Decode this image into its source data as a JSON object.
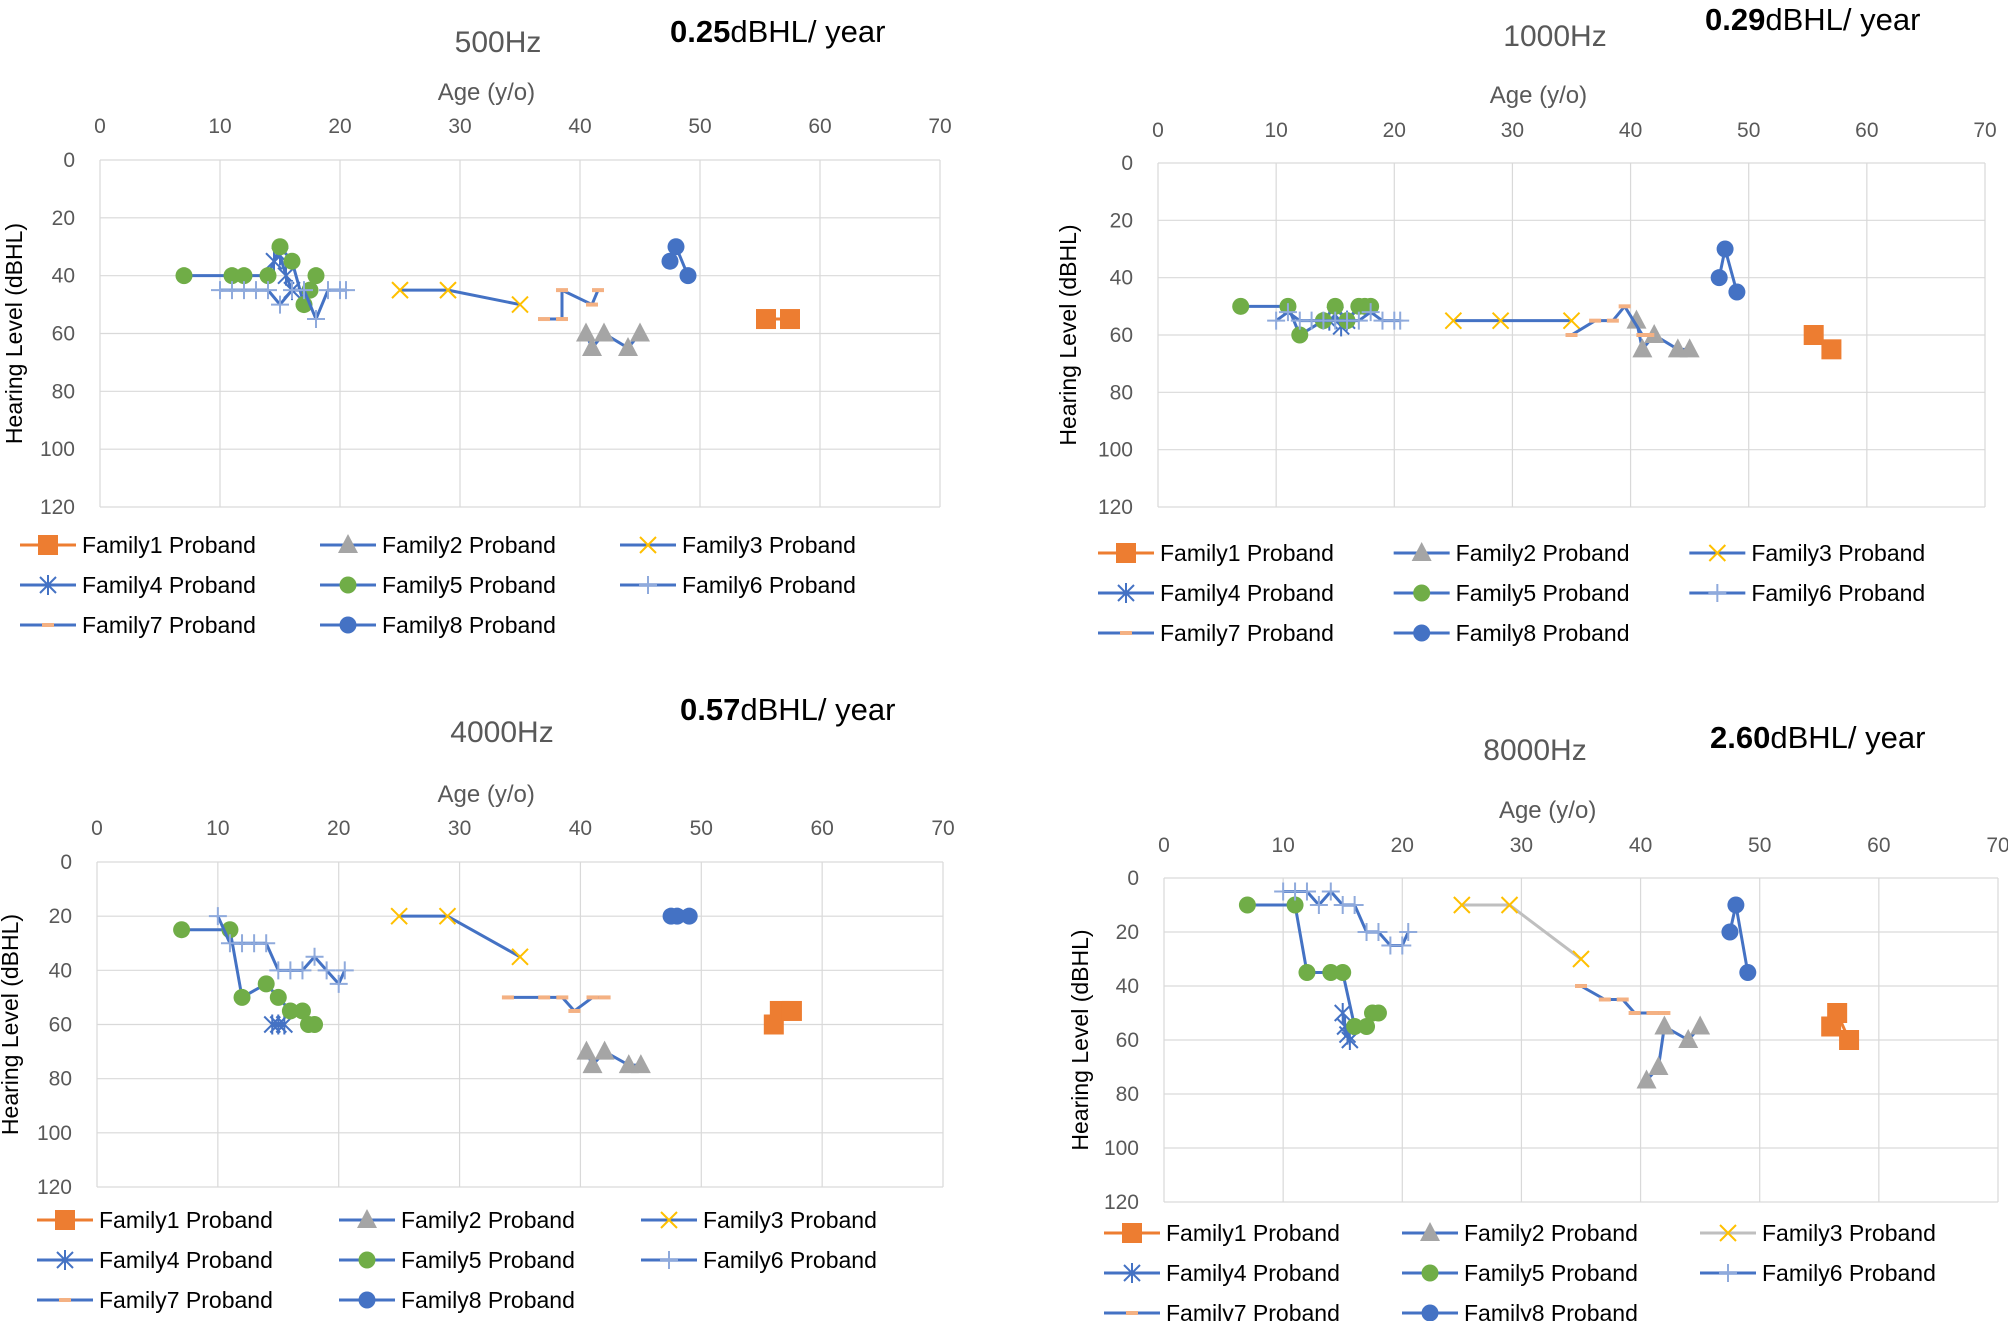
{
  "figure": {
    "x_axis_label": "Age (y/o)",
    "y_axis_label": "Hearing Level  (dBHL)",
    "x_ticks": [
      0,
      10,
      20,
      30,
      40,
      50,
      60,
      70
    ],
    "y_ticks": [
      0,
      20,
      40,
      60,
      80,
      100,
      120
    ],
    "legend_labels": [
      "Family1 Proband",
      "Family2 Proband",
      "Family3 Proband",
      "Family4 Proband",
      "Family5 Proband",
      "Family6 Proband",
      "Family7 Proband",
      "Family8 Proband"
    ]
  },
  "colors": {
    "family1": "#ED7D31",
    "family2_marker": "#A5A5A5",
    "family3_marker": "#FFC000",
    "family4_marker": "#4472C4",
    "family5_marker": "#70AD47",
    "family6_marker": "#8FAADC",
    "family7_marker": "#F4B183",
    "family8": "#4472C4",
    "line": "#4472C4",
    "line_gray": "#BFBFBF",
    "grid": "#D9D9D9",
    "tick_text": "#595959",
    "title": "#595959"
  },
  "chart_data": [
    {
      "type": "line",
      "title": "500Hz",
      "rate_value": "0.25",
      "rate_unit": "dBHL/ year",
      "xlabel": "Age (y/o)",
      "ylabel": "Hearing Level  (dBHL)",
      "xlim": [
        0,
        70
      ],
      "ylim": [
        0,
        120
      ],
      "y_inverted": true,
      "legend": "bottom",
      "series": [
        {
          "name": "Family1 Proband",
          "x": [
            55.5,
            57.5
          ],
          "y": [
            55,
            55
          ]
        },
        {
          "name": "Family2 Proband",
          "x": [
            40.5,
            41.0,
            42.0,
            44.0,
            45.0
          ],
          "y": [
            60,
            65,
            60,
            65,
            60
          ]
        },
        {
          "name": "Family3 Proband",
          "x": [
            25.0,
            29.0,
            35.0
          ],
          "y": [
            45,
            45,
            50
          ]
        },
        {
          "name": "Family4 Proband",
          "x": [
            14.5,
            15.0,
            15.5,
            16.0
          ],
          "y": [
            35,
            33,
            40,
            45
          ]
        },
        {
          "name": "Family5 Proband",
          "x": [
            7.0,
            11.0,
            12.0,
            14.0,
            15.0,
            16.0,
            17.0,
            17.5,
            18.0
          ],
          "y": [
            40,
            40,
            40,
            40,
            30,
            35,
            50,
            45,
            40
          ]
        },
        {
          "name": "Family6 Proband",
          "x": [
            10.0,
            11.0,
            12.0,
            13.0,
            14.0,
            15.0,
            16.0,
            17.0,
            18.0,
            19.0,
            20.0,
            20.5
          ],
          "y": [
            45,
            45,
            45,
            45,
            45,
            50,
            45,
            45,
            55,
            45,
            45,
            45
          ]
        },
        {
          "name": "Family7 Proband",
          "x": [
            37.0,
            38.5,
            38.5,
            41.0,
            41.5
          ],
          "y": [
            55,
            55,
            45,
            50,
            45
          ]
        },
        {
          "name": "Family8 Proband",
          "x": [
            47.5,
            48.0,
            49.0
          ],
          "y": [
            35,
            30,
            40
          ]
        }
      ]
    },
    {
      "type": "line",
      "title": "1000Hz",
      "rate_value": "0.29",
      "rate_unit": "dBHL/ year",
      "xlabel": "Age (y/o)",
      "ylabel": "Hearing Level  (dBHL)",
      "xlim": [
        0,
        70
      ],
      "ylim": [
        0,
        120
      ],
      "y_inverted": true,
      "legend": "bottom",
      "series": [
        {
          "name": "Family1 Proband",
          "x": [
            55.5,
            57.0
          ],
          "y": [
            60,
            65
          ]
        },
        {
          "name": "Family2 Proband",
          "x": [
            40.5,
            41.0,
            42.0,
            44.0,
            45.0
          ],
          "y": [
            55,
            65,
            60,
            65,
            65
          ]
        },
        {
          "name": "Family3 Proband",
          "x": [
            25.0,
            29.0,
            35.0
          ],
          "y": [
            55,
            55,
            55
          ]
        },
        {
          "name": "Family4 Proband",
          "x": [
            14.5,
            15.0,
            15.5,
            16.0
          ],
          "y": [
            55,
            53,
            57,
            55
          ]
        },
        {
          "name": "Family5 Proband",
          "x": [
            7.0,
            11.0,
            12.0,
            14.0,
            15.0,
            16.0,
            17.0,
            17.5,
            18.0
          ],
          "y": [
            50,
            50,
            60,
            55,
            50,
            55,
            50,
            50,
            50
          ]
        },
        {
          "name": "Family6 Proband",
          "x": [
            10.0,
            11.0,
            12.0,
            13.0,
            14.0,
            15.0,
            16.0,
            17.0,
            18.0,
            19.0,
            20.0,
            20.5
          ],
          "y": [
            55,
            52,
            55,
            55,
            55,
            55,
            55,
            55,
            52,
            55,
            55,
            55
          ]
        },
        {
          "name": "Family7 Proband",
          "x": [
            35.0,
            37.0,
            38.5,
            39.5,
            41.0,
            41.5
          ],
          "y": [
            60,
            55,
            55,
            50,
            60,
            60
          ]
        },
        {
          "name": "Family8 Proband",
          "x": [
            47.5,
            48.0,
            49.0
          ],
          "y": [
            40,
            30,
            45
          ]
        }
      ]
    },
    {
      "type": "line",
      "title": "4000Hz",
      "rate_value": "0.57",
      "rate_unit": "dBHL/ year",
      "xlabel": "Age (y/o)",
      "ylabel": "Hearing Level  (dBHL)",
      "xlim": [
        0,
        70
      ],
      "ylim": [
        0,
        120
      ],
      "y_inverted": true,
      "legend": "bottom",
      "series": [
        {
          "name": "Family1 Proband",
          "x": [
            56.0,
            56.5,
            57.5
          ],
          "y": [
            60,
            55,
            55
          ]
        },
        {
          "name": "Family2 Proband",
          "x": [
            40.5,
            41.0,
            42.0,
            44.0,
            45.0
          ],
          "y": [
            70,
            75,
            70,
            75,
            75
          ]
        },
        {
          "name": "Family3 Proband",
          "x": [
            25.0,
            29.0,
            35.0
          ],
          "y": [
            20,
            20,
            35
          ]
        },
        {
          "name": "Family4 Proband",
          "x": [
            14.5,
            15.0,
            15.5
          ],
          "y": [
            60,
            60,
            60
          ]
        },
        {
          "name": "Family5 Proband",
          "x": [
            7.0,
            11.0,
            12.0,
            14.0,
            15.0,
            16.0,
            17.0,
            17.5,
            18.0
          ],
          "y": [
            25,
            25,
            50,
            45,
            50,
            55,
            55,
            60,
            60
          ]
        },
        {
          "name": "Family6 Proband",
          "x": [
            10.0,
            11.0,
            12.0,
            13.0,
            14.0,
            15.0,
            16.0,
            17.0,
            18.0,
            19.0,
            20.0,
            20.5
          ],
          "y": [
            20,
            30,
            30,
            30,
            30,
            40,
            40,
            40,
            35,
            40,
            45,
            40
          ]
        },
        {
          "name": "Family7 Proband",
          "x": [
            34.0,
            37.0,
            38.5,
            39.5,
            41.0,
            42.0
          ],
          "y": [
            50,
            50,
            50,
            55,
            50,
            50
          ]
        },
        {
          "name": "Family8 Proband",
          "x": [
            47.5,
            48.0,
            49.0
          ],
          "y": [
            20,
            20,
            20
          ]
        }
      ]
    },
    {
      "type": "line",
      "title": "8000Hz",
      "rate_value": "2.60",
      "rate_unit": "dBHL/ year",
      "xlabel": "Age (y/o)",
      "ylabel": "Hearing Level  (dBHL)",
      "xlim": [
        0,
        70
      ],
      "ylim": [
        0,
        120
      ],
      "y_inverted": true,
      "legend": "bottom",
      "series": [
        {
          "name": "Family1 Proband",
          "x": [
            56.0,
            56.5,
            57.5
          ],
          "y": [
            55,
            50,
            60
          ]
        },
        {
          "name": "Family2 Proband",
          "x": [
            40.5,
            41.5,
            42.0,
            44.0,
            45.0
          ],
          "y": [
            75,
            70,
            55,
            60,
            55
          ]
        },
        {
          "name": "Family3 Proband",
          "x": [
            25.0,
            29.0,
            35.0
          ],
          "y": [
            10,
            10,
            30
          ]
        },
        {
          "name": "Family4 Proband",
          "x": [
            15.0,
            15.2,
            15.4,
            15.6
          ],
          "y": [
            50,
            55,
            58,
            60
          ]
        },
        {
          "name": "Family5 Proband",
          "x": [
            7.0,
            11.0,
            12.0,
            14.0,
            15.0,
            16.0,
            17.0,
            17.5,
            18.0
          ],
          "y": [
            10,
            10,
            35,
            35,
            35,
            55,
            55,
            50,
            50
          ]
        },
        {
          "name": "Family6 Proband",
          "x": [
            10.0,
            11.0,
            12.0,
            13.0,
            14.0,
            15.0,
            16.0,
            17.0,
            18.0,
            19.0,
            20.0,
            20.5
          ],
          "y": [
            5,
            5,
            5,
            10,
            5,
            10,
            10,
            20,
            20,
            25,
            25,
            20
          ]
        },
        {
          "name": "Family7 Proband",
          "x": [
            35.0,
            37.0,
            38.5,
            39.5,
            41.0,
            42.0
          ],
          "y": [
            40,
            45,
            45,
            50,
            50,
            50
          ]
        },
        {
          "name": "Family8 Proband",
          "x": [
            47.5,
            48.0,
            49.0
          ],
          "y": [
            20,
            10,
            35
          ]
        }
      ]
    }
  ]
}
